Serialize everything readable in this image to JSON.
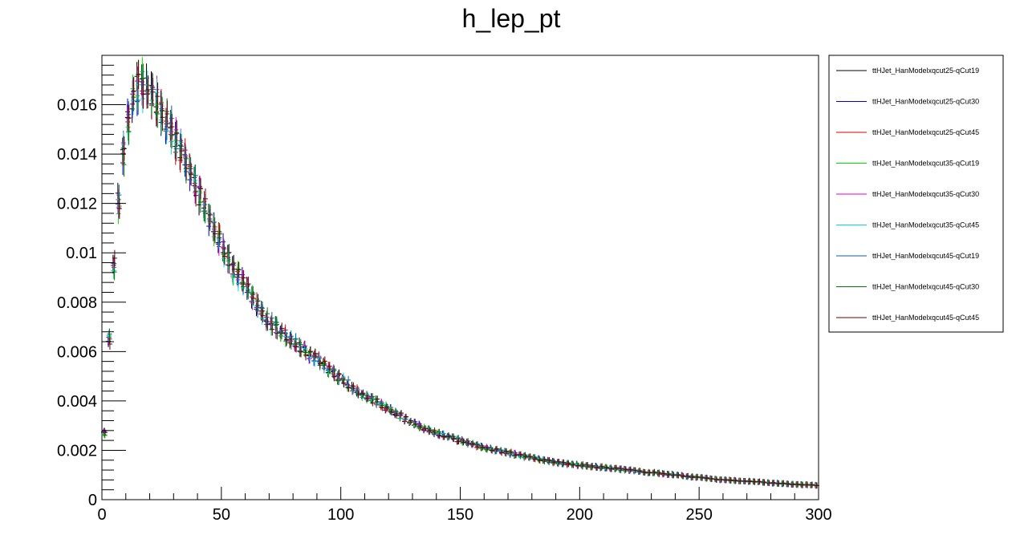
{
  "chart_data": {
    "type": "scatter",
    "style": "histogram-error-bars",
    "title": "h_lep_pt",
    "xlabel": "",
    "ylabel": "",
    "xlim": [
      0,
      300
    ],
    "ylim": [
      0,
      0.018
    ],
    "x_ticks": [
      0,
      50,
      100,
      150,
      200,
      250,
      300
    ],
    "x_tick_labels": [
      "0",
      "50",
      "100",
      "150",
      "200",
      "250",
      "300"
    ],
    "y_ticks": [
      0,
      0.002,
      0.004,
      0.006,
      0.008,
      0.01,
      0.012,
      0.014,
      0.016
    ],
    "y_tick_labels": [
      "0",
      "0.002",
      "0.004",
      "0.006",
      "0.008",
      "0.01",
      "0.012",
      "0.014",
      "0.016"
    ],
    "grid": false,
    "legend_position": "right",
    "bin_width": 2,
    "reference_curve": {
      "x": [
        1,
        3,
        5,
        7,
        9,
        11,
        13,
        15,
        17,
        19,
        21,
        23,
        25,
        30,
        35,
        40,
        45,
        50,
        55,
        60,
        65,
        70,
        75,
        80,
        90,
        100,
        110,
        120,
        130,
        140,
        150,
        160,
        170,
        180,
        190,
        200,
        210,
        220,
        230,
        240,
        250,
        260,
        270,
        280,
        290,
        300
      ],
      "y": [
        0.0027,
        0.0065,
        0.0095,
        0.012,
        0.014,
        0.0153,
        0.0162,
        0.0167,
        0.0168,
        0.0167,
        0.0165,
        0.0161,
        0.0157,
        0.0148,
        0.0137,
        0.0125,
        0.0114,
        0.0103,
        0.0093,
        0.0087,
        0.0079,
        0.0072,
        0.0068,
        0.0064,
        0.0057,
        0.0049,
        0.0042,
        0.0037,
        0.0031,
        0.0027,
        0.0024,
        0.0021,
        0.0019,
        0.0017,
        0.0015,
        0.0014,
        0.0013,
        0.0012,
        0.0011,
        0.001,
        0.0009,
        0.0008,
        0.00075,
        0.00068,
        0.00062,
        0.00058
      ]
    },
    "series": [
      {
        "name": "ttHJet_HanModelxqcut25-qCut19",
        "color": "#000000"
      },
      {
        "name": "ttHJet_HanModelxqcut25-qCut30",
        "color": "#0000cc"
      },
      {
        "name": "ttHJet_HanModelxqcut25-qCut45",
        "color": "#e00000"
      },
      {
        "name": "ttHJet_HanModelxqcut35-qCut19",
        "color": "#00e000"
      },
      {
        "name": "ttHJet_HanModelxqcut35-qCut30",
        "color": "#e000e0"
      },
      {
        "name": "ttHJet_HanModelxqcut35-qCut45",
        "color": "#00e0e0"
      },
      {
        "name": "ttHJet_HanModelxqcut45-qCut19",
        "color": "#0b5f96"
      },
      {
        "name": "ttHJet_HanModelxqcut45-qCut30",
        "color": "#007a00"
      },
      {
        "name": "ttHJet_HanModelxqcut45-qCut45",
        "color": "#6b0000"
      }
    ]
  }
}
